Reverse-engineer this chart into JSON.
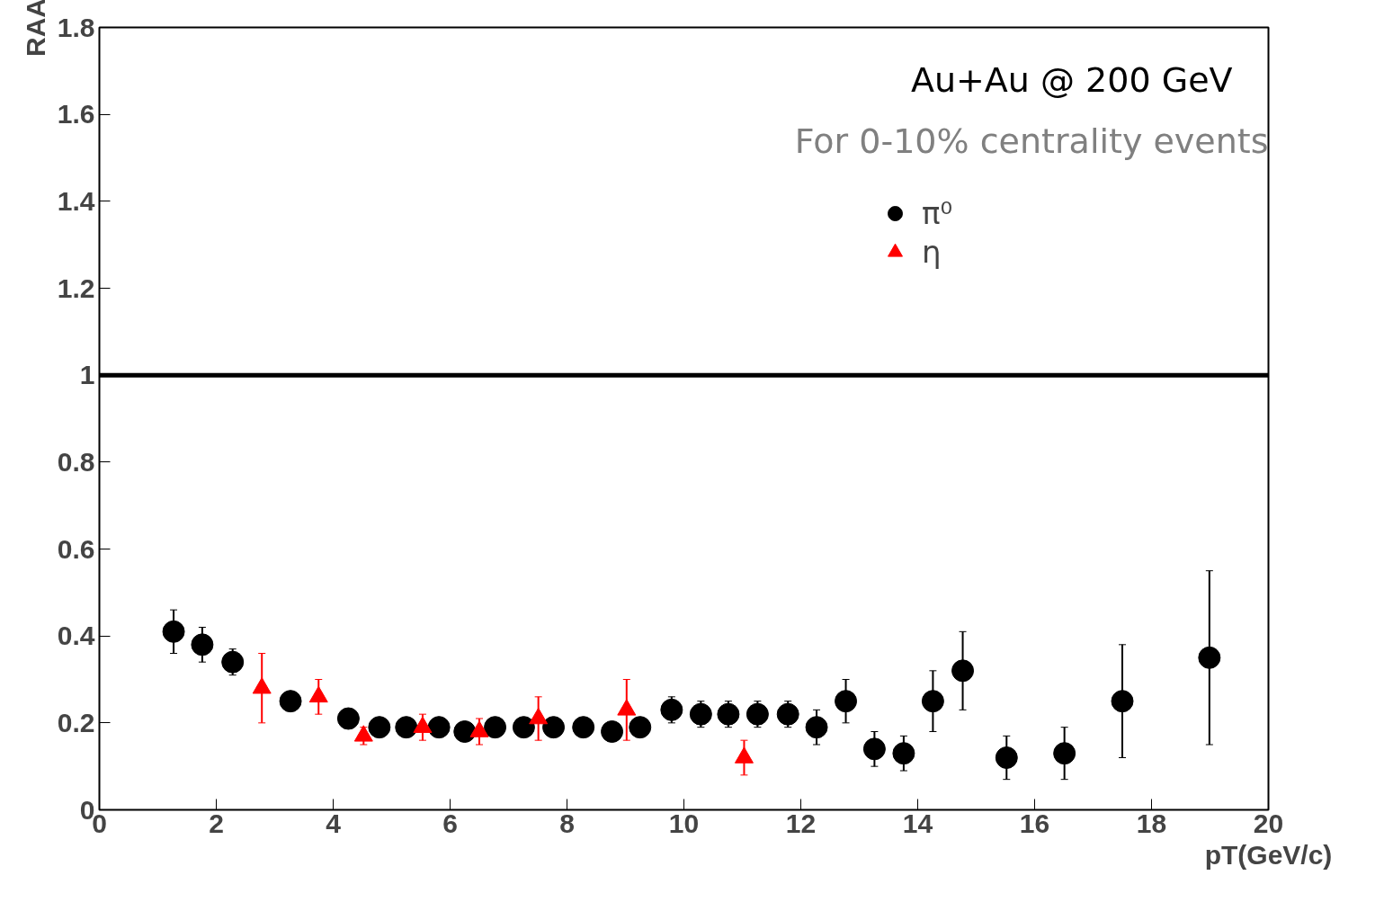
{
  "chart_data": {
    "type": "scatter",
    "xlabel": "pT(GeV/c)",
    "ylabel": "RAA",
    "xlim": [
      0,
      20
    ],
    "ylim": [
      0,
      1.8
    ],
    "xticks": [
      0,
      2,
      4,
      6,
      8,
      10,
      12,
      14,
      16,
      18,
      20
    ],
    "yticks": [
      0,
      0.2,
      0.4,
      0.6,
      0.8,
      1,
      1.2,
      1.4,
      1.6,
      1.8
    ],
    "grid": false,
    "legend": "top right",
    "annotations": [
      "Au+Au @ 200 GeV",
      "For 0-10% centrality events"
    ],
    "ref_lines": [
      {
        "axis": "y",
        "value": 1,
        "color": "#000000"
      }
    ],
    "series": [
      {
        "name": "π⁰",
        "color": "#000000",
        "marker": "circle",
        "x": [
          1.27,
          1.76,
          2.28,
          3.27,
          4.26,
          4.79,
          5.25,
          5.81,
          6.25,
          6.77,
          7.26,
          7.77,
          8.28,
          8.77,
          9.25,
          9.79,
          10.29,
          10.76,
          11.26,
          11.78,
          12.27,
          12.77,
          13.26,
          13.76,
          14.26,
          14.77,
          15.52,
          16.51,
          17.5,
          18.99
        ],
        "values": [
          0.41,
          0.38,
          0.34,
          0.25,
          0.21,
          0.19,
          0.19,
          0.19,
          0.18,
          0.19,
          0.19,
          0.19,
          0.19,
          0.18,
          0.19,
          0.23,
          0.22,
          0.22,
          0.22,
          0.22,
          0.19,
          0.25,
          0.14,
          0.13,
          0.25,
          0.32,
          0.12,
          0.13,
          0.25,
          0.35
        ],
        "errors": [
          0.05,
          0.04,
          0.03,
          0.02,
          0.02,
          0.02,
          0.02,
          0.02,
          0.02,
          0.02,
          0.02,
          0.02,
          0.02,
          0.02,
          0.02,
          0.03,
          0.03,
          0.03,
          0.03,
          0.03,
          0.04,
          0.05,
          0.04,
          0.04,
          0.07,
          0.09,
          0.05,
          0.06,
          0.13,
          0.2
        ]
      },
      {
        "name": "η",
        "color": "#ff0000",
        "marker": "triangle",
        "x": [
          2.78,
          3.75,
          4.52,
          5.53,
          6.5,
          7.51,
          9.02,
          11.03
        ],
        "values": [
          0.28,
          0.26,
          0.17,
          0.19,
          0.18,
          0.21,
          0.23,
          0.12
        ],
        "errors": [
          0.08,
          0.04,
          0.02,
          0.03,
          0.03,
          0.05,
          0.07,
          0.04
        ]
      }
    ]
  }
}
